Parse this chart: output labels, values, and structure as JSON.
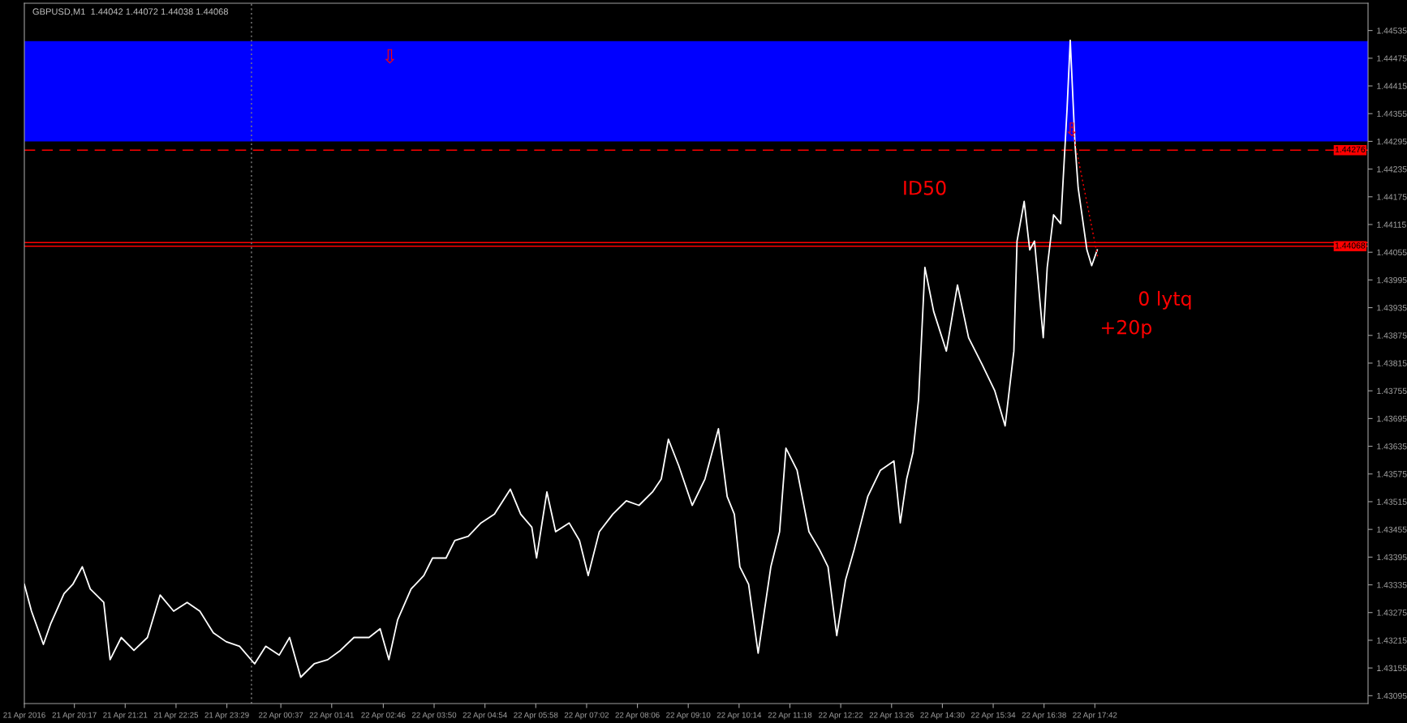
{
  "chart_data": {
    "type": "line",
    "title": "GBPUSD,M1  1.44042 1.44072 1.44038 1.44068",
    "series": [
      {
        "color": "#ffffff",
        "x": [
          "2016-04-21T19:14",
          "2016-04-21T19:23",
          "2016-04-21T19:38",
          "2016-04-21T19:47",
          "2016-04-21T20:04",
          "2016-04-21T20:15",
          "2016-04-21T20:27",
          "2016-04-21T20:37",
          "2016-04-21T20:54",
          "2016-04-21T21:02",
          "2016-04-21T21:16",
          "2016-04-21T21:32",
          "2016-04-21T21:49",
          "2016-04-21T22:05",
          "2016-04-21T22:22",
          "2016-04-21T22:39",
          "2016-04-21T22:55",
          "2016-04-21T23:12",
          "2016-04-21T23:28",
          "2016-04-21T23:45",
          "2016-04-22T00:04",
          "2016-04-22T00:18",
          "2016-04-22T00:35",
          "2016-04-22T00:48",
          "2016-04-22T01:02",
          "2016-04-22T01:19",
          "2016-04-22T01:36",
          "2016-04-22T01:52",
          "2016-04-22T02:09",
          "2016-04-22T02:28",
          "2016-04-22T02:42",
          "2016-04-22T02:53",
          "2016-04-22T03:04",
          "2016-04-22T03:21",
          "2016-04-22T03:37",
          "2016-04-22T03:48",
          "2016-04-22T04:05",
          "2016-04-22T04:16",
          "2016-04-22T04:33",
          "2016-04-22T04:49",
          "2016-04-22T05:06",
          "2016-04-22T05:26",
          "2016-04-22T05:39",
          "2016-04-22T05:53",
          "2016-04-22T05:59",
          "2016-04-22T06:12",
          "2016-04-22T06:23",
          "2016-04-22T06:40",
          "2016-04-22T06:53",
          "2016-04-22T07:04",
          "2016-04-22T07:18",
          "2016-04-22T07:35",
          "2016-04-22T07:52",
          "2016-04-22T08:08",
          "2016-04-22T08:25",
          "2016-04-22T08:36",
          "2016-04-22T08:45",
          "2016-04-22T08:58",
          "2016-04-22T09:15",
          "2016-04-22T09:31",
          "2016-04-22T09:48",
          "2016-04-22T09:59",
          "2016-04-22T10:08",
          "2016-04-22T10:15",
          "2016-04-22T10:26",
          "2016-04-22T10:38",
          "2016-04-22T10:54",
          "2016-04-22T11:05",
          "2016-04-22T11:13",
          "2016-04-22T11:27",
          "2016-04-22T11:42",
          "2016-04-22T11:55",
          "2016-04-22T12:06",
          "2016-04-22T12:17",
          "2016-04-22T12:28",
          "2016-04-22T12:39",
          "2016-04-22T12:56",
          "2016-04-22T13:12",
          "2016-04-22T13:29",
          "2016-04-22T13:37",
          "2016-04-22T13:45",
          "2016-04-22T13:53",
          "2016-04-22T14:00",
          "2016-04-22T14:08",
          "2016-04-22T14:19",
          "2016-04-22T14:35",
          "2016-04-22T14:49",
          "2016-04-22T15:03",
          "2016-04-22T15:20",
          "2016-04-22T15:36",
          "2016-04-22T15:49",
          "2016-04-22T16:00",
          "2016-04-22T16:04",
          "2016-04-22T16:13",
          "2016-04-22T16:20",
          "2016-04-22T16:26",
          "2016-04-22T16:37",
          "2016-04-22T16:42",
          "2016-04-22T16:50",
          "2016-04-22T16:59",
          "2016-04-22T17:07",
          "2016-04-22T17:11",
          "2016-04-22T17:17",
          "2016-04-22T17:21",
          "2016-04-22T17:32",
          "2016-04-22T17:38",
          "2016-04-22T17:45"
        ],
        "values": [
          1.43336,
          1.43278,
          1.43206,
          1.4325,
          1.43316,
          1.43336,
          1.43374,
          1.43326,
          1.43297,
          1.43173,
          1.43221,
          1.43193,
          1.43221,
          1.43313,
          1.43278,
          1.43297,
          1.43278,
          1.43231,
          1.43212,
          1.43202,
          1.43164,
          1.43202,
          1.43183,
          1.43221,
          1.43135,
          1.43164,
          1.43173,
          1.43193,
          1.43221,
          1.43221,
          1.4324,
          1.43173,
          1.43259,
          1.43326,
          1.43355,
          1.43393,
          1.43393,
          1.43431,
          1.4344,
          1.43469,
          1.43488,
          1.43542,
          1.43488,
          1.4346,
          1.43393,
          1.43536,
          1.4345,
          1.43469,
          1.43431,
          1.43355,
          1.4345,
          1.43488,
          1.43517,
          1.43507,
          1.43536,
          1.43564,
          1.4365,
          1.43593,
          1.43507,
          1.43564,
          1.43673,
          1.43526,
          1.43488,
          1.43374,
          1.43336,
          1.43187,
          1.43374,
          1.4345,
          1.43631,
          1.43583,
          1.4345,
          1.43412,
          1.43374,
          1.43225,
          1.43345,
          1.43412,
          1.43526,
          1.43583,
          1.43603,
          1.43469,
          1.43564,
          1.43622,
          1.43736,
          1.44022,
          1.43927,
          1.43841,
          1.43984,
          1.4387,
          1.43812,
          1.43755,
          1.43679,
          1.43841,
          1.44079,
          1.44165,
          1.4406,
          1.44079,
          1.4387,
          1.44022,
          1.44136,
          1.44117,
          1.44365,
          1.44514,
          1.44289,
          1.44194,
          1.4406,
          1.44026,
          1.4406
        ]
      },
      {
        "color": "#ff0000",
        "line_style": "dotted",
        "x": [
          "2016-04-22T17:13",
          "2016-04-22T17:46"
        ],
        "values": [
          1.44327,
          1.44041
        ]
      }
    ],
    "xlim": [
      "2016-04-21T19:14",
      "2016-04-22T23:26"
    ],
    "ylim": [
      1.43078,
      1.44594
    ],
    "xticks": [
      {
        "value": "2016-04-21T19:14",
        "label": "21 Apr 2016"
      },
      {
        "value": "2016-04-21T20:17",
        "label": "21 Apr 20:17"
      },
      {
        "value": "2016-04-21T21:21",
        "label": "21 Apr 21:21"
      },
      {
        "value": "2016-04-21T22:25",
        "label": "21 Apr 22:25"
      },
      {
        "value": "2016-04-21T23:29",
        "label": "21 Apr 23:29"
      },
      {
        "value": "2016-04-22T00:37",
        "label": "22 Apr 00:37"
      },
      {
        "value": "2016-04-22T01:41",
        "label": "22 Apr 01:41"
      },
      {
        "value": "2016-04-22T02:46",
        "label": "22 Apr 02:46"
      },
      {
        "value": "2016-04-22T03:50",
        "label": "22 Apr 03:50"
      },
      {
        "value": "2016-04-22T04:54",
        "label": "22 Apr 04:54"
      },
      {
        "value": "2016-04-22T05:58",
        "label": "22 Apr 05:58"
      },
      {
        "value": "2016-04-22T07:02",
        "label": "22 Apr 07:02"
      },
      {
        "value": "2016-04-22T08:06",
        "label": "22 Apr 08:06"
      },
      {
        "value": "2016-04-22T09:10",
        "label": "22 Apr 09:10"
      },
      {
        "value": "2016-04-22T10:14",
        "label": "22 Apr 10:14"
      },
      {
        "value": "2016-04-22T11:18",
        "label": "22 Apr 11:18"
      },
      {
        "value": "2016-04-22T12:22",
        "label": "22 Apr 12:22"
      },
      {
        "value": "2016-04-22T13:26",
        "label": "22 Apr 13:26"
      },
      {
        "value": "2016-04-22T14:30",
        "label": "22 Apr 14:30"
      },
      {
        "value": "2016-04-22T15:34",
        "label": "22 Apr 15:34"
      },
      {
        "value": "2016-04-22T16:38",
        "label": "22 Apr 16:38"
      },
      {
        "value": "2016-04-22T17:42",
        "label": "22 Apr 17:42"
      }
    ],
    "yticks": [
      1.43095,
      1.43155,
      1.43215,
      1.43275,
      1.43335,
      1.43395,
      1.43455,
      1.43515,
      1.43575,
      1.43635,
      1.43695,
      1.43755,
      1.43815,
      1.43875,
      1.43935,
      1.43995,
      1.44055,
      1.44115,
      1.44175,
      1.44235,
      1.44295,
      1.44355,
      1.44415,
      1.44475,
      1.44535
    ],
    "bands": [
      {
        "axis": "y",
        "from": 1.44295,
        "to": 1.44512,
        "color": "#0000ff"
      }
    ],
    "ref_lines": [
      {
        "axis": "y",
        "value": 1.44276,
        "label": "1.44276",
        "color": "#ff0000",
        "line_style": "dashed"
      },
      {
        "axis": "y",
        "value": 1.44076,
        "color": "#ff0000",
        "line_style": "solid"
      },
      {
        "axis": "y",
        "value": 1.44068,
        "label": "1.44068",
        "color": "#ff0000",
        "line_style": "solid"
      },
      {
        "axis": "x",
        "value": "2016-04-22T00:00",
        "color": "#808080",
        "line_style": "dotted"
      }
    ],
    "annotations": [
      "⇩",
      {
        "text": "⇩",
        "x": "2016-04-22T17:13",
        "y": 1.44318
      },
      "ID50",
      "0 lytq",
      "+20p"
    ]
  }
}
